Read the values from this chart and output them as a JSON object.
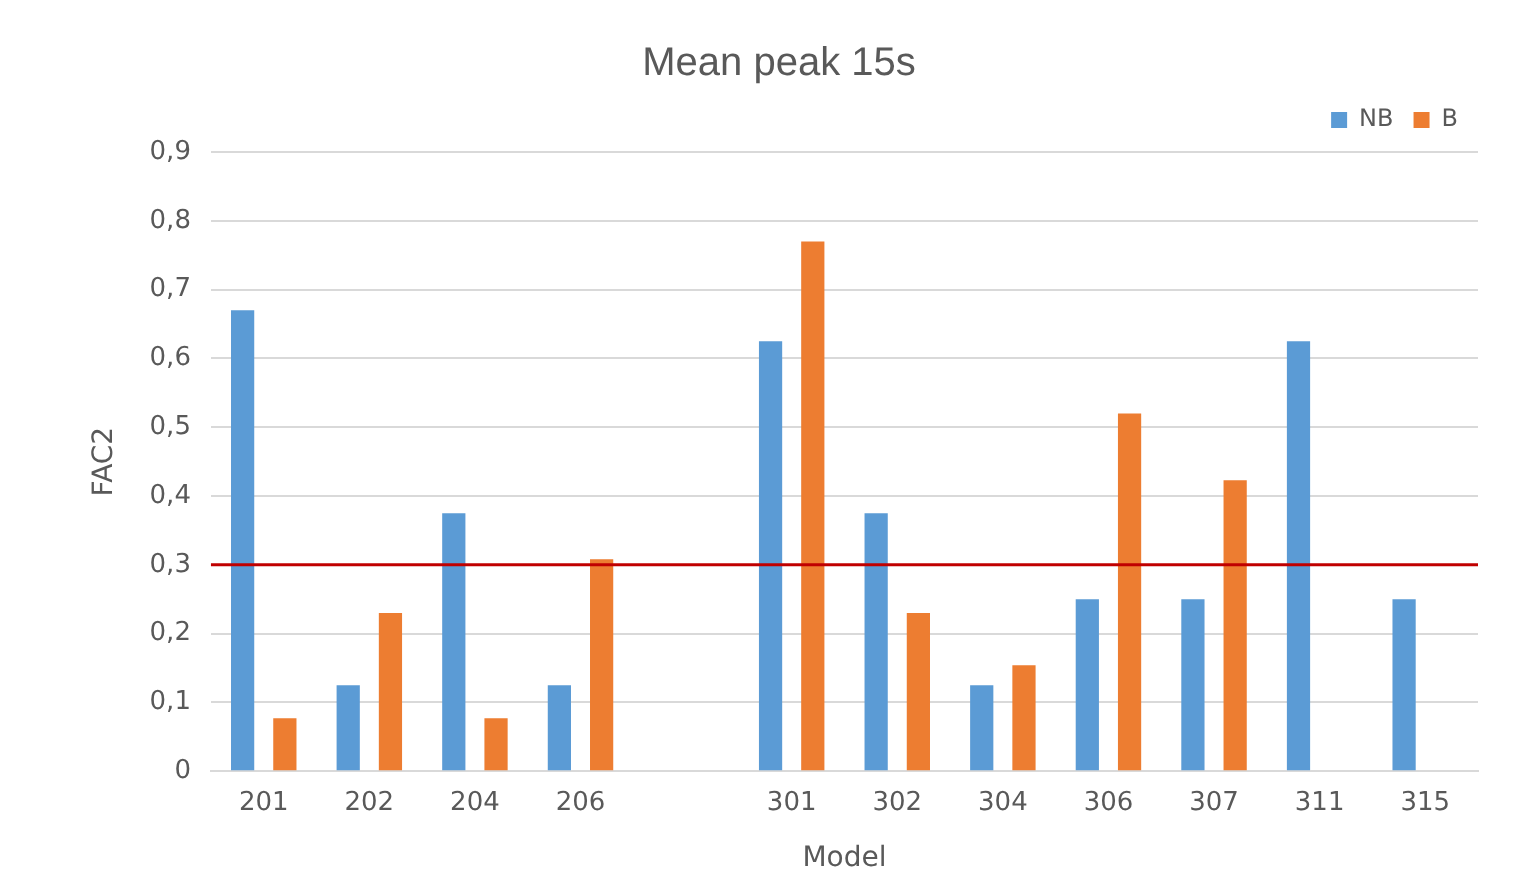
{
  "chart_data": {
    "type": "bar",
    "title": "Mean peak 15s",
    "xlabel": "Model",
    "ylabel": "FAC2",
    "categories": [
      "201",
      "202",
      "204",
      "206",
      null,
      "301",
      "302",
      "304",
      "306",
      "307",
      "311",
      "315"
    ],
    "series": [
      {
        "name": "NB",
        "color": "#5b9bd5",
        "values": [
          0.67,
          0.125,
          0.375,
          0.125,
          null,
          0.625,
          0.375,
          0.125,
          0.25,
          0.25,
          0.625,
          0.25
        ]
      },
      {
        "name": "B",
        "color": "#ed7d31",
        "values": [
          0.077,
          0.23,
          0.077,
          0.308,
          null,
          0.77,
          0.23,
          0.154,
          0.52,
          0.423,
          null,
          null
        ]
      }
    ],
    "ylim": [
      0,
      0.9
    ],
    "yticks": [
      {
        "value": 0,
        "label": "0"
      },
      {
        "value": 0.1,
        "label": "0,1"
      },
      {
        "value": 0.2,
        "label": "0,2"
      },
      {
        "value": 0.3,
        "label": "0,3"
      },
      {
        "value": 0.4,
        "label": "0,4"
      },
      {
        "value": 0.5,
        "label": "0,5"
      },
      {
        "value": 0.6,
        "label": "0,6"
      },
      {
        "value": 0.7,
        "label": "0,7"
      },
      {
        "value": 0.8,
        "label": "0,8"
      },
      {
        "value": 0.9,
        "label": "0,9"
      }
    ],
    "ref_lines": [
      {
        "axis": "y",
        "value": 0.3,
        "color": "#c00000"
      }
    ],
    "grid": "y",
    "legend": "top right"
  }
}
